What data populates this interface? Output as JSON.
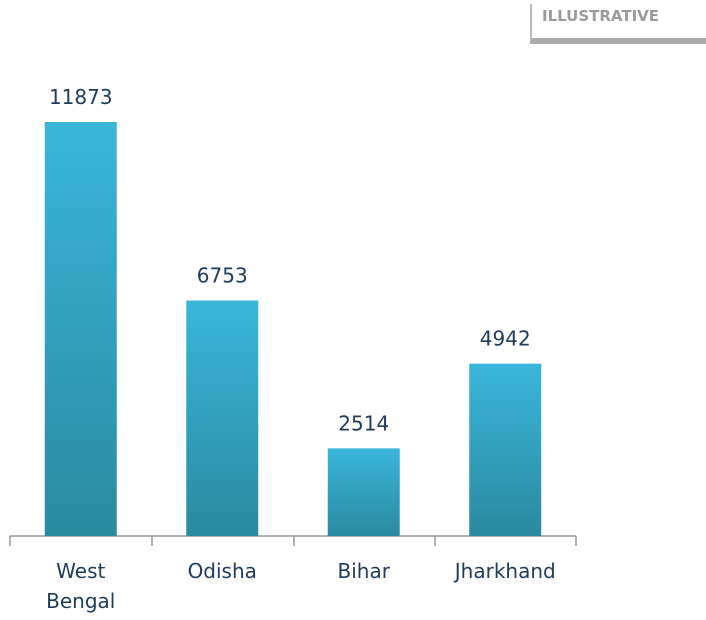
{
  "tag": "ILLUSTRATIVE",
  "chart_data": {
    "type": "bar",
    "categories": [
      "West Bengal",
      "Odisha",
      "Bihar",
      "Jharkhand"
    ],
    "values": [
      11873,
      6753,
      2514,
      4942
    ],
    "color": [
      "#3ab6da",
      "#2a8aa0"
    ]
  }
}
